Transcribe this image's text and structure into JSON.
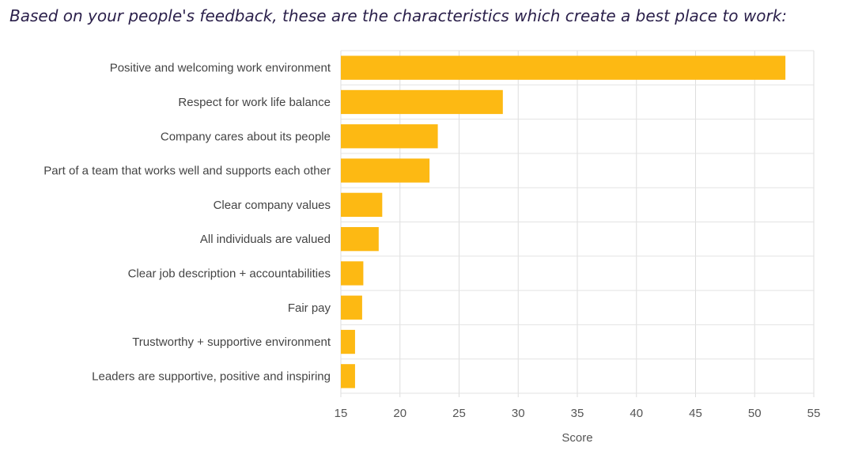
{
  "header": {
    "title": "Based on your people's feedback, these are the characteristics which create a best place to work:"
  },
  "chart_data": {
    "type": "bar",
    "orientation": "horizontal",
    "categories": [
      "Positive and welcoming work environment",
      "Respect for work life balance",
      "Company cares about its people",
      "Part of a team that works well and supports each other",
      "Clear company values",
      "All individuals are valued",
      "Clear job description + accountabilities",
      "Fair pay",
      "Trustworthy + supportive environment",
      "Leaders are supportive, positive and inspiring"
    ],
    "values": [
      52.6,
      28.7,
      23.2,
      22.5,
      18.5,
      18.2,
      16.9,
      16.8,
      16.2,
      16.2
    ],
    "xlabel": "Score",
    "ylabel": "",
    "xlim": [
      15,
      55
    ],
    "xticks": [
      "15",
      "20",
      "25",
      "30",
      "35",
      "40",
      "45",
      "50",
      "55"
    ],
    "grid": true,
    "bar_color": "#FDB913"
  }
}
